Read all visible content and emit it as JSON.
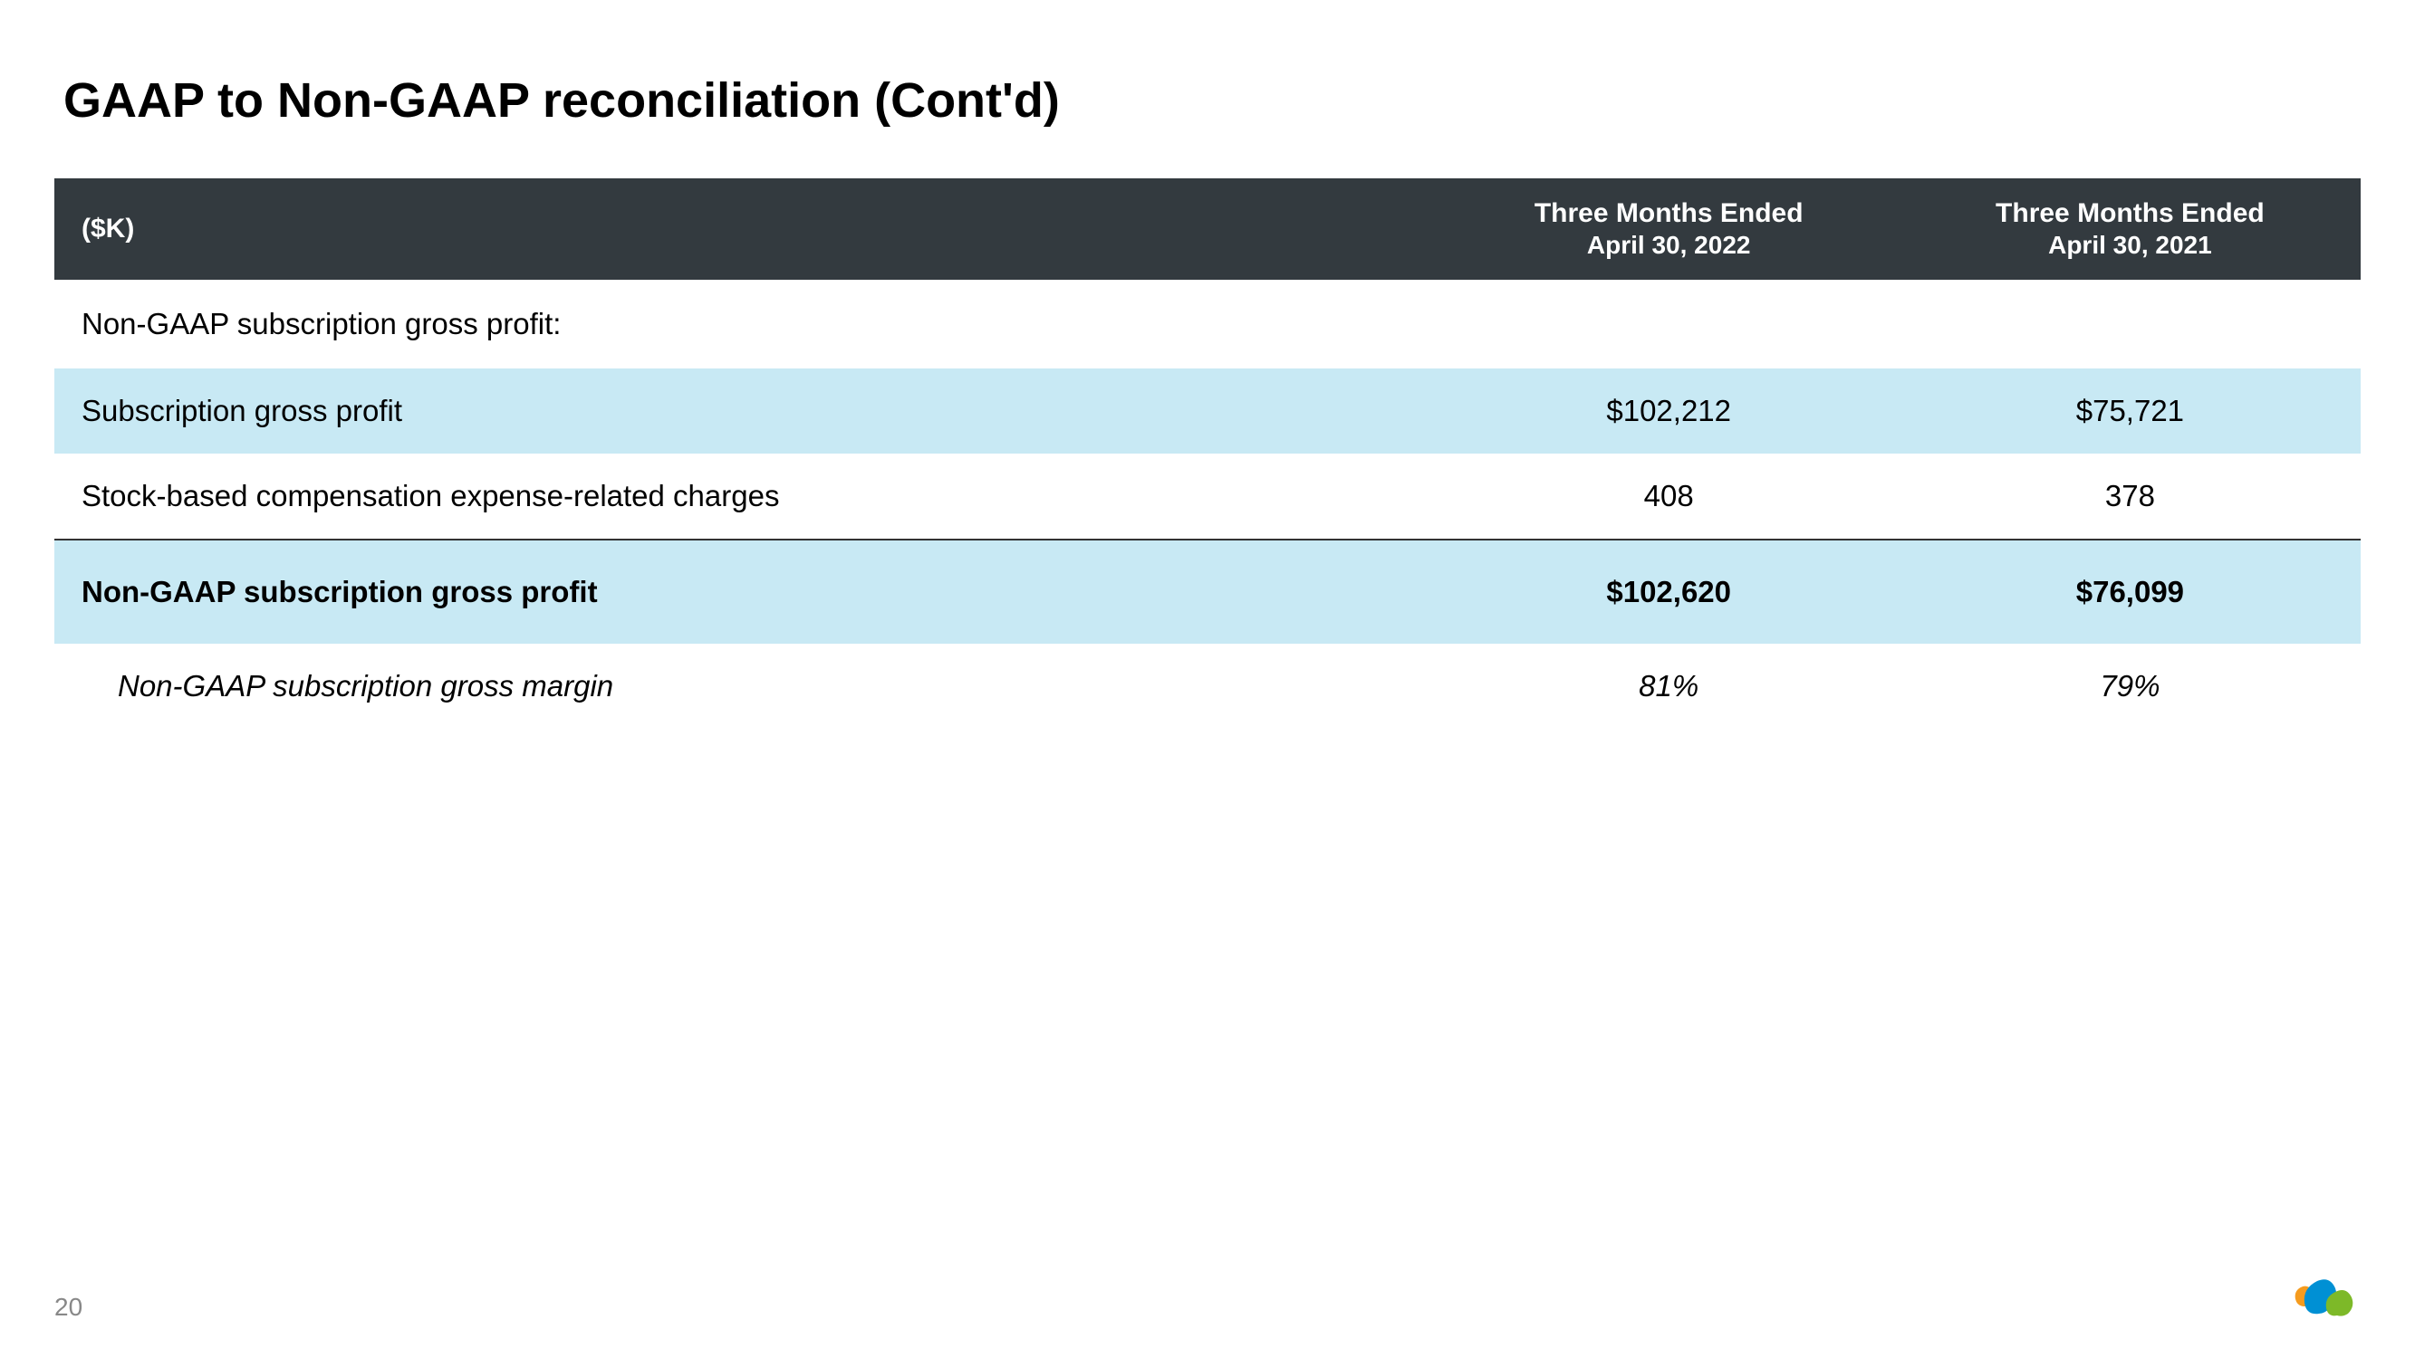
{
  "title": "GAAP to Non-GAAP reconciliation (Cont'd)",
  "pageNumber": "20",
  "table": {
    "headers": {
      "col0": "($K)",
      "col1_line1": "Three Months Ended",
      "col1_line2": "April 30, 2022",
      "col2_line1": "Three Months Ended",
      "col2_line2": "April 30, 2021"
    },
    "rows": [
      {
        "label": "Non-GAAP subscription gross profit:",
        "val1": "",
        "val2": "",
        "classes": "section-header"
      },
      {
        "label": "Subscription gross profit",
        "val1": "$102,212",
        "val2": "$75,721",
        "classes": "data-row row-highlight"
      },
      {
        "label": "Stock-based compensation expense-related charges",
        "val1": "408",
        "val2": "378",
        "classes": "data-row"
      },
      {
        "label": "Non-GAAP subscription gross profit",
        "val1": "$102,620",
        "val2": "$76,099",
        "classes": "data-row row-highlight row-bold row-border-top"
      },
      {
        "label": "Non-GAAP subscription gross margin",
        "val1": "81%",
        "val2": "79%",
        "classes": "data-row row-italic row-indent"
      }
    ]
  },
  "colors": {
    "headerBg": "#333a3f",
    "highlightBg": "#c8e9f4",
    "logoBlue": "#0090d4",
    "logoOrange": "#f59b1e",
    "logoGreen": "#7db928"
  }
}
